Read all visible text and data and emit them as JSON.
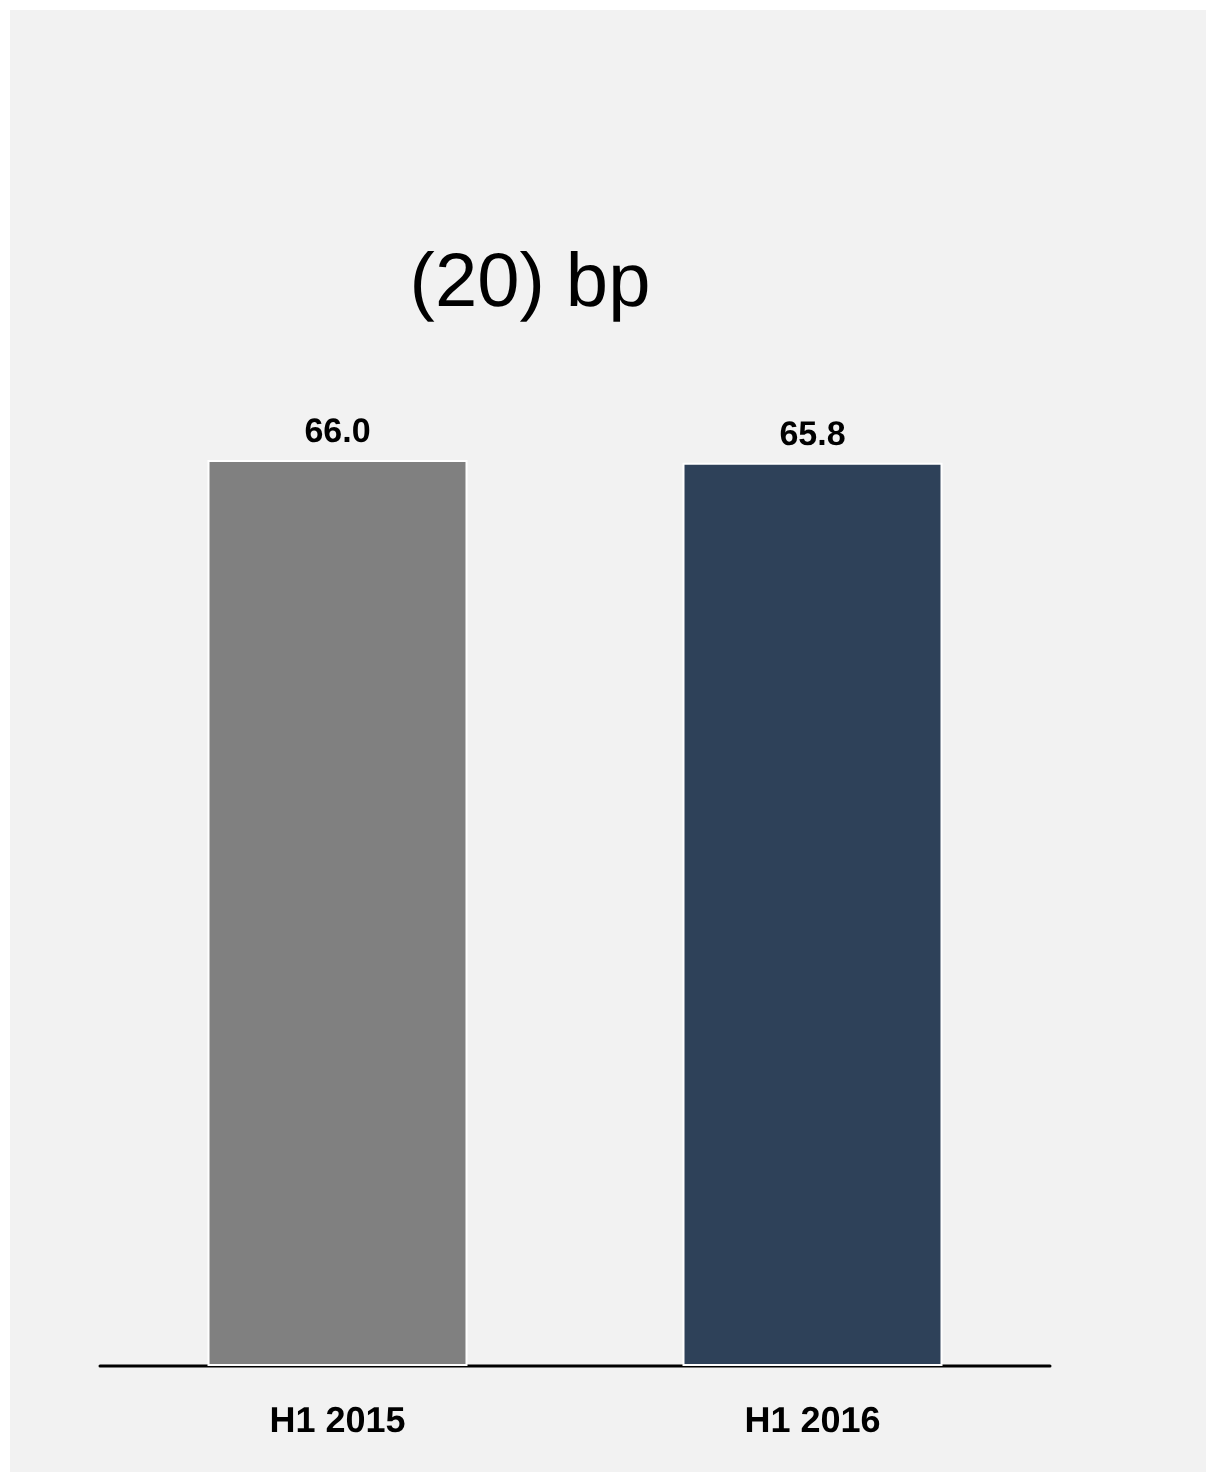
{
  "chart_data": {
    "type": "bar",
    "title": "(20) bp",
    "categories": [
      "H1 2015",
      "H1 2016"
    ],
    "values": [
      66.0,
      65.8
    ],
    "colors": [
      "#808080",
      "#2e4159"
    ],
    "value_labels": [
      "66.0",
      "65.8"
    ]
  }
}
